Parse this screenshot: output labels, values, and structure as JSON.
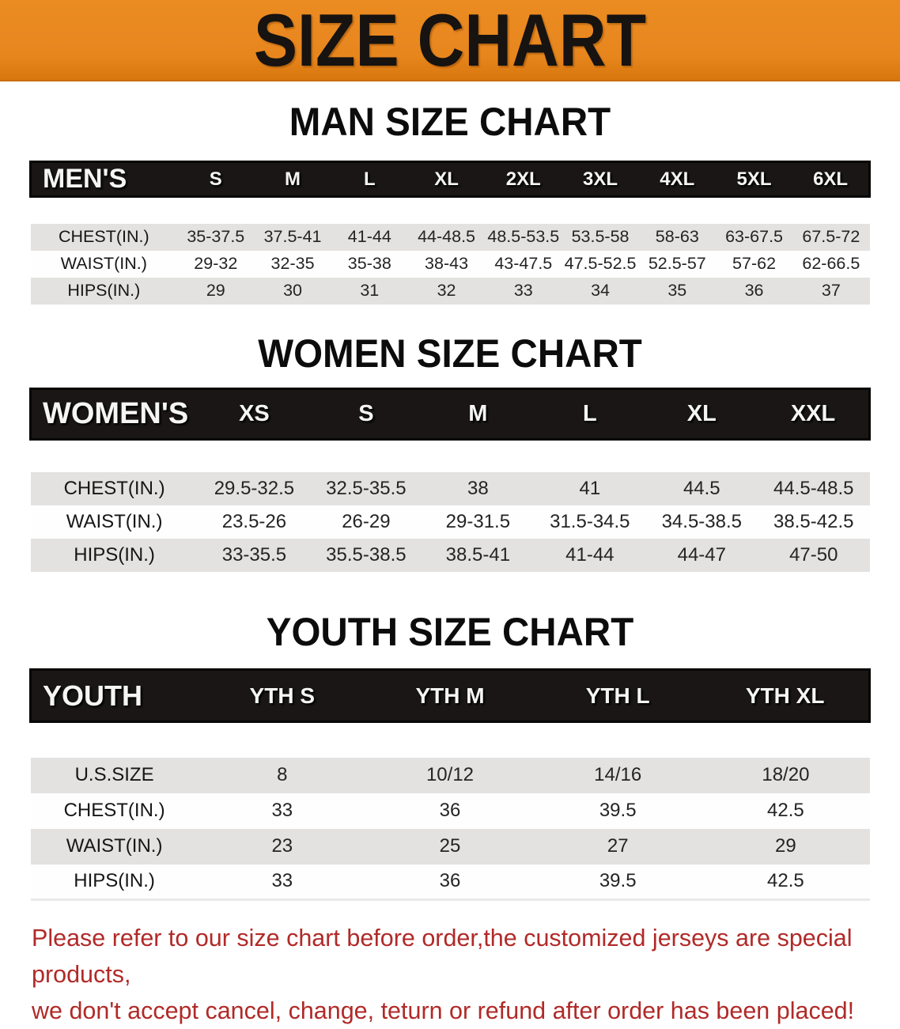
{
  "banner": {
    "title": "SIZE CHART",
    "bg_color": "#e8861e",
    "text_color": "#161311"
  },
  "sections": [
    {
      "heading": "MAN SIZE CHART",
      "table": {
        "header_label": "MEN'S",
        "columns": [
          "S",
          "M",
          "L",
          "XL",
          "2XL",
          "3XL",
          "4XL",
          "5XL",
          "6XL"
        ],
        "rows": [
          {
            "label": "CHEST(IN.)",
            "values": [
              "35-37.5",
              "37.5-41",
              "41-44",
              "44-48.5",
              "48.5-53.5",
              "53.5-58",
              "58-63",
              "63-67.5",
              "67.5-72"
            ]
          },
          {
            "label": "WAIST(IN.)",
            "values": [
              "29-32",
              "32-35",
              "35-38",
              "38-43",
              "43-47.5",
              "47.5-52.5",
              "52.5-57",
              "57-62",
              "62-66.5"
            ]
          },
          {
            "label": "HIPS(IN.)",
            "values": [
              "29",
              "30",
              "31",
              "32",
              "33",
              "34",
              "35",
              "36",
              "37"
            ]
          }
        ]
      }
    },
    {
      "heading": "WOMEN SIZE CHART",
      "table": {
        "header_label": "WOMEN'S",
        "columns": [
          "XS",
          "S",
          "M",
          "L",
          "XL",
          "XXL"
        ],
        "rows": [
          {
            "label": "CHEST(IN.)",
            "values": [
              "29.5-32.5",
              "32.5-35.5",
              "38",
              "41",
              "44.5",
              "44.5-48.5"
            ]
          },
          {
            "label": "WAIST(IN.)",
            "values": [
              "23.5-26",
              "26-29",
              "29-31.5",
              "31.5-34.5",
              "34.5-38.5",
              "38.5-42.5"
            ]
          },
          {
            "label": "HIPS(IN.)",
            "values": [
              "33-35.5",
              "35.5-38.5",
              "38.5-41",
              "41-44",
              "44-47",
              "47-50"
            ]
          }
        ]
      }
    },
    {
      "heading": "YOUTH SIZE CHART",
      "table": {
        "header_label": "YOUTH",
        "columns": [
          "YTH S",
          "YTH M",
          "YTH L",
          "YTH XL"
        ],
        "rows": [
          {
            "label": "U.S.SIZE",
            "values": [
              "8",
              "10/12",
              "14/16",
              "18/20"
            ]
          },
          {
            "label": "CHEST(IN.)",
            "values": [
              "33",
              "36",
              "39.5",
              "42.5"
            ]
          },
          {
            "label": "WAIST(IN.)",
            "values": [
              "23",
              "25",
              "27",
              "29"
            ]
          },
          {
            "label": "HIPS(IN.)",
            "values": [
              "33",
              "36",
              "39.5",
              "42.5"
            ]
          }
        ]
      }
    }
  ],
  "disclaimer": {
    "line1": "Please refer to our size chart before order,the customized jerseys are special products,",
    "line2": "we don't accept cancel, change, teturn or refund after order has been placed!",
    "text_color": "#b02a28"
  },
  "colors": {
    "banner_orange": "#e8861e",
    "header_bar_black": "#191615",
    "stripe_gray": "#e3e2e1",
    "row_white": "#fefefe",
    "disclaimer_red": "#b02a28"
  },
  "label_col_widths": {
    "men": "17.5%",
    "women": "20%",
    "youth": "20%"
  }
}
